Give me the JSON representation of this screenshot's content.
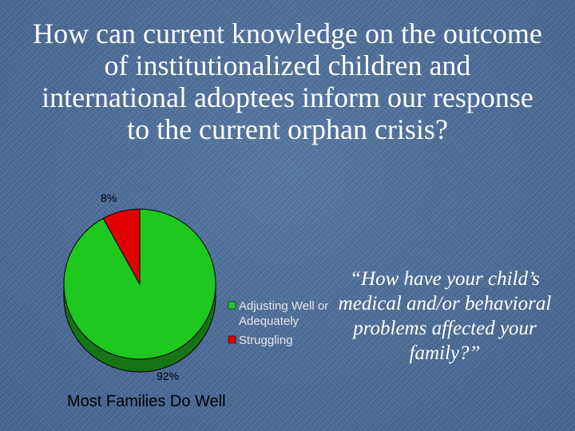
{
  "slide": {
    "title": "How can current knowledge on the outcome of institutionalized children and international adoptees inform our response to the current orphan crisis?",
    "quote": "“How have your child’s medical and/or behavioral problems affected your family?”"
  },
  "chart_data": {
    "type": "pie",
    "title": "",
    "footer": "Most Families Do Well",
    "slices": [
      {
        "label": "Adjusting Well or Adequately",
        "value": 92,
        "display": "92%",
        "color": "#1ec81e",
        "side_color": "#157515",
        "legend_lines": [
          "Adjusting Well or",
          "Adequately"
        ]
      },
      {
        "label": "Struggling",
        "value": 8,
        "display": "8%",
        "color": "#e00000",
        "side_color": "#7a0000",
        "legend_lines": [
          "Struggling"
        ]
      }
    ],
    "legend_position": "right"
  }
}
